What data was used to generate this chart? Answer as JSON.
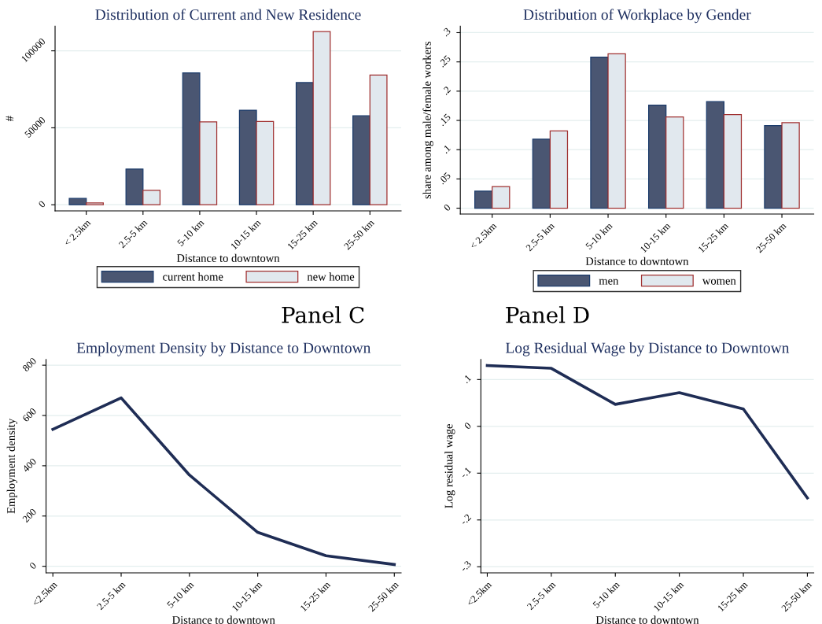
{
  "chart_data": [
    {
      "type": "bar",
      "title": "Distribution of Current and New Residence",
      "xlabel": "Distance to downtown",
      "ylabel": "#",
      "categories": [
        "< 2.5km",
        "2.5-5 km",
        "5-10 km",
        "10-15 km",
        "15-25 km",
        "25-50 km"
      ],
      "series": [
        {
          "name": "current home",
          "color": "#4a5672",
          "values": [
            4100,
            23200,
            85700,
            61400,
            79400,
            57800
          ]
        },
        {
          "name": "new home",
          "color": "#e1e8ee",
          "values": [
            1200,
            9400,
            53800,
            54100,
            112500,
            84300
          ]
        }
      ],
      "ylim": [
        -4000,
        116000
      ],
      "yticks": [
        0,
        50000,
        100000
      ],
      "grid": "y",
      "legend": "bottom"
    },
    {
      "type": "bar",
      "title": "Distribution of Workplace by Gender",
      "xlabel": "Distance to downtown",
      "ylabel": "share among male/female workers",
      "categories": [
        "< 2.5km",
        "2.5-5 km",
        "5-10 km",
        "10-15 km",
        "15-25 km",
        "25-50 km"
      ],
      "series": [
        {
          "name": "men",
          "color": "#4a5672",
          "values": [
            0.029,
            0.118,
            0.258,
            0.176,
            0.182,
            0.141
          ]
        },
        {
          "name": "women",
          "color": "#e1e8ee",
          "values": [
            0.037,
            0.132,
            0.264,
            0.156,
            0.16,
            0.146
          ]
        }
      ],
      "ylim": [
        -0.01,
        0.311
      ],
      "yticks": [
        0,
        {
          "value": 0.05,
          "label": ".05"
        },
        {
          "value": 0.1,
          "label": ".1"
        },
        {
          "value": 0.15,
          "label": ".15"
        },
        {
          "value": 0.2,
          "label": ".2"
        },
        {
          "value": 0.25,
          "label": ".25"
        },
        {
          "value": 0.3,
          "label": ".3"
        }
      ],
      "grid": "y",
      "legend": "bottom"
    },
    {
      "type": "line",
      "title": "Employment Density by Distance to Downtown",
      "xlabel": "Distance to downtown",
      "ylabel": "Employment density",
      "annotations": [
        "Panel C"
      ],
      "categories": [
        "<2.5km",
        "2.5-5 km",
        "5-10 km",
        "10-15 km",
        "15-25 km",
        "25-50 km"
      ],
      "series": [
        {
          "color": "#1f2d55",
          "values": [
            545,
            670,
            363,
            135,
            42,
            7
          ]
        }
      ],
      "ylim": [
        -26,
        823
      ],
      "yticks": [
        0,
        200,
        400,
        600,
        800
      ],
      "grid": "y"
    },
    {
      "type": "line",
      "title": "Log Residual Wage by Distance to Downtown",
      "xlabel": "Distance to downtown",
      "ylabel": "Log residual wage",
      "annotations": [
        "Panel D"
      ],
      "categories": [
        "<2.5km",
        "2.5-5 km",
        "5-10 km",
        "10-15 km",
        "15-25 km",
        "25-50 km"
      ],
      "series": [
        {
          "color": "#1f2d55",
          "values": [
            0.13,
            0.124,
            0.047,
            0.072,
            0.037,
            -0.153
          ]
        }
      ],
      "ylim": [
        -0.313,
        0.143
      ],
      "yticks": [
        {
          "value": -0.3,
          "label": "-.3"
        },
        {
          "value": -0.2,
          "label": "-.2"
        },
        {
          "value": -0.1,
          "label": "-.1"
        },
        0,
        {
          "value": 0.1,
          "label": ".1"
        }
      ],
      "grid": "y"
    }
  ]
}
